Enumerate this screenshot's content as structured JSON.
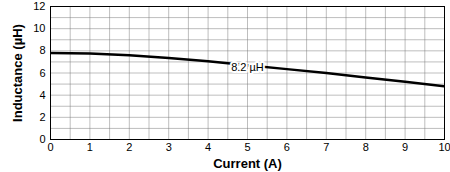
{
  "chart_data": {
    "type": "line",
    "xlabel": "Current (A)",
    "ylabel": "Inductance (µH)",
    "x": [
      0,
      1,
      2,
      3,
      4,
      5,
      6,
      7,
      8,
      9,
      10
    ],
    "series": [
      {
        "name": "8.2 µH",
        "color": "#000000",
        "values": [
          7.8,
          7.75,
          7.6,
          7.35,
          7.05,
          6.7,
          6.35,
          6.0,
          5.6,
          5.2,
          4.8
        ]
      }
    ],
    "xlim": [
      0,
      10
    ],
    "ylim": [
      0,
      12
    ],
    "xticks": [
      0,
      1,
      2,
      3,
      4,
      5,
      6,
      7,
      8,
      9,
      10
    ],
    "yticks": [
      0,
      2,
      4,
      6,
      8,
      10,
      12
    ],
    "grid": true
  }
}
